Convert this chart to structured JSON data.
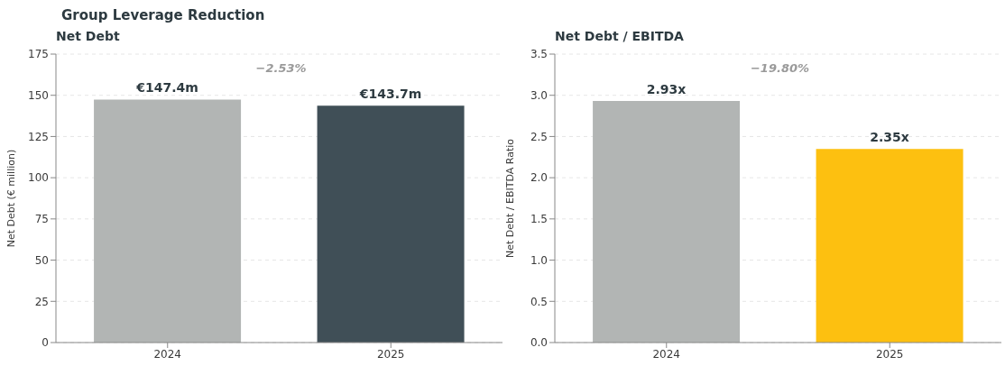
{
  "chart_data": [
    {
      "type": "bar",
      "title": "Group Leverage Reduction",
      "subtitle": "Net Debt",
      "ylabel": "Net Debt (€ million)",
      "categories": [
        "2024",
        "2025"
      ],
      "values": [
        147.4,
        143.7
      ],
      "colors": [
        "#b2b5b4",
        "#404f57"
      ],
      "value_labels": [
        "€147.4m",
        "€143.7m"
      ],
      "annotations": [
        "−2.53%"
      ],
      "ylim": [
        0,
        175
      ],
      "yticks": [
        0,
        25,
        50,
        75,
        100,
        125,
        150,
        175
      ],
      "grid": "y"
    },
    {
      "type": "bar",
      "title": "Net Debt / EBITDA",
      "ylabel": "Net Debt / EBITDA Ratio",
      "categories": [
        "2024",
        "2025"
      ],
      "values": [
        2.93,
        2.35
      ],
      "colors": [
        "#b2b5b4",
        "#fdc010"
      ],
      "value_labels": [
        "2.93x",
        "2.35x"
      ],
      "annotations": [
        "−19.80%"
      ],
      "ylim": [
        0,
        3.5
      ],
      "yticks": [
        {
          "value": 0,
          "label": "0.0"
        },
        {
          "value": 0.5,
          "label": "0.5"
        },
        {
          "value": 1,
          "label": "1.0"
        },
        {
          "value": 1.5,
          "label": "1.5"
        },
        {
          "value": 2,
          "label": "2.0"
        },
        {
          "value": 2.5,
          "label": "2.5"
        },
        {
          "value": 3,
          "label": "3.0"
        },
        {
          "value": 3.5,
          "label": "3.5"
        }
      ],
      "grid": "y"
    }
  ]
}
